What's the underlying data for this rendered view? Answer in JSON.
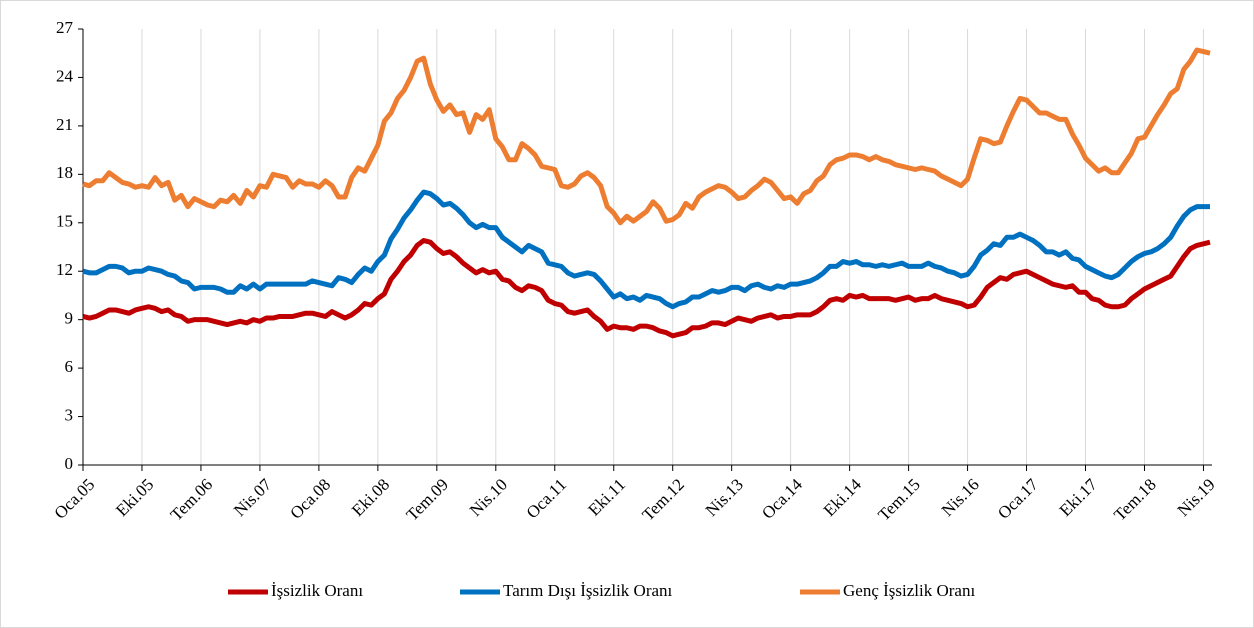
{
  "chart_data": {
    "type": "line",
    "categories": [
      "Oca.05",
      null,
      null,
      null,
      null,
      null,
      null,
      null,
      null,
      "Eki.05",
      null,
      null,
      null,
      null,
      null,
      null,
      null,
      null,
      "Tem.06",
      null,
      null,
      null,
      null,
      null,
      null,
      null,
      null,
      "Nis.07",
      null,
      null,
      null,
      null,
      null,
      null,
      null,
      null,
      "Oca.08",
      null,
      null,
      null,
      null,
      null,
      null,
      null,
      null,
      "Eki.08",
      null,
      null,
      null,
      null,
      null,
      null,
      null,
      null,
      "Tem.09",
      null,
      null,
      null,
      null,
      null,
      null,
      null,
      null,
      "Nis.10",
      null,
      null,
      null,
      null,
      null,
      null,
      null,
      null,
      "Oca.11",
      null,
      null,
      null,
      null,
      null,
      null,
      null,
      null,
      "Eki.11",
      null,
      null,
      null,
      null,
      null,
      null,
      null,
      null,
      "Tem.12",
      null,
      null,
      null,
      null,
      null,
      null,
      null,
      null,
      "Nis.13",
      null,
      null,
      null,
      null,
      null,
      null,
      null,
      null,
      "Oca.14",
      null,
      null,
      null,
      null,
      null,
      null,
      null,
      null,
      "Eki.14",
      null,
      null,
      null,
      null,
      null,
      null,
      null,
      null,
      "Tem.15",
      null,
      null,
      null,
      null,
      null,
      null,
      null,
      null,
      "Nis.16",
      null,
      null,
      null,
      null,
      null,
      null,
      null,
      null,
      "Oca.17",
      null,
      null,
      null,
      null,
      null,
      null,
      null,
      null,
      "Eki.17",
      null,
      null,
      null,
      null,
      null,
      null,
      null,
      null,
      "Tem.18",
      null,
      null,
      null,
      null,
      null,
      null,
      null,
      null,
      "Nis.19",
      null
    ],
    "series": [
      {
        "name": "İşsizlik Oranı",
        "color": "#c00000",
        "values": [
          9.2,
          9.1,
          9.2,
          9.4,
          9.6,
          9.6,
          9.5,
          9.4,
          9.6,
          9.7,
          9.8,
          9.7,
          9.5,
          9.6,
          9.3,
          9.2,
          8.9,
          9.0,
          9.0,
          9.0,
          8.9,
          8.8,
          8.7,
          8.8,
          8.9,
          8.8,
          9.0,
          8.9,
          9.1,
          9.1,
          9.2,
          9.2,
          9.2,
          9.3,
          9.4,
          9.4,
          9.3,
          9.2,
          9.5,
          9.3,
          9.1,
          9.3,
          9.6,
          10.0,
          9.9,
          10.3,
          10.6,
          11.5,
          12.0,
          12.6,
          13.0,
          13.6,
          13.9,
          13.8,
          13.4,
          13.1,
          13.2,
          12.9,
          12.5,
          12.2,
          11.9,
          12.1,
          11.9,
          12.0,
          11.5,
          11.4,
          11.0,
          10.8,
          11.1,
          11.0,
          10.8,
          10.2,
          10.0,
          9.9,
          9.5,
          9.4,
          9.5,
          9.6,
          9.2,
          8.9,
          8.4,
          8.6,
          8.5,
          8.5,
          8.4,
          8.6,
          8.6,
          8.5,
          8.3,
          8.2,
          8.0,
          8.1,
          8.2,
          8.5,
          8.5,
          8.6,
          8.8,
          8.8,
          8.7,
          8.9,
          9.1,
          9.0,
          8.9,
          9.1,
          9.2,
          9.3,
          9.1,
          9.2,
          9.2,
          9.3,
          9.3,
          9.3,
          9.5,
          9.8,
          10.2,
          10.3,
          10.2,
          10.5,
          10.4,
          10.5,
          10.3,
          10.3,
          10.3,
          10.3,
          10.2,
          10.3,
          10.4,
          10.2,
          10.3,
          10.3,
          10.5,
          10.3,
          10.2,
          10.1,
          10.0,
          9.8,
          9.9,
          10.4,
          11.0,
          11.3,
          11.6,
          11.5,
          11.8,
          11.9,
          12.0,
          11.8,
          11.6,
          11.4,
          11.2,
          11.1,
          11.0,
          11.1,
          10.7,
          10.7,
          10.3,
          10.2,
          9.9,
          9.8,
          9.8,
          9.9,
          10.3,
          10.6,
          10.9,
          11.1,
          11.3,
          11.5,
          11.7,
          12.3,
          12.9,
          13.4,
          13.6,
          13.7,
          13.8
        ]
      },
      {
        "name": "Tarım Dışı İşsizlik Oranı",
        "color": "#0070c0",
        "values": [
          12.0,
          11.9,
          11.9,
          12.1,
          12.3,
          12.3,
          12.2,
          11.9,
          12.0,
          12.0,
          12.2,
          12.1,
          12.0,
          11.8,
          11.7,
          11.4,
          11.3,
          10.9,
          11.0,
          11.0,
          11.0,
          10.9,
          10.7,
          10.7,
          11.1,
          10.9,
          11.2,
          10.9,
          11.2,
          11.2,
          11.2,
          11.2,
          11.2,
          11.2,
          11.2,
          11.4,
          11.3,
          11.2,
          11.1,
          11.6,
          11.5,
          11.3,
          11.8,
          12.2,
          12.0,
          12.6,
          13.0,
          14.0,
          14.6,
          15.3,
          15.8,
          16.4,
          16.9,
          16.8,
          16.5,
          16.1,
          16.2,
          15.9,
          15.5,
          15.0,
          14.7,
          14.9,
          14.7,
          14.7,
          14.1,
          13.8,
          13.5,
          13.2,
          13.6,
          13.4,
          13.2,
          12.5,
          12.4,
          12.3,
          11.9,
          11.7,
          11.8,
          11.9,
          11.8,
          11.4,
          10.9,
          10.4,
          10.6,
          10.3,
          10.4,
          10.2,
          10.5,
          10.4,
          10.3,
          10.0,
          9.8,
          10.0,
          10.1,
          10.4,
          10.4,
          10.6,
          10.8,
          10.7,
          10.8,
          11.0,
          11.0,
          10.8,
          11.1,
          11.2,
          11.0,
          10.9,
          11.1,
          11.0,
          11.2,
          11.2,
          11.3,
          11.4,
          11.6,
          11.9,
          12.3,
          12.3,
          12.6,
          12.5,
          12.6,
          12.4,
          12.4,
          12.3,
          12.4,
          12.3,
          12.4,
          12.5,
          12.3,
          12.3,
          12.3,
          12.5,
          12.3,
          12.2,
          12.0,
          11.9,
          11.7,
          11.8,
          12.3,
          13.0,
          13.3,
          13.7,
          13.6,
          14.1,
          14.1,
          14.3,
          14.1,
          13.9,
          13.6,
          13.2,
          13.2,
          13.0,
          13.2,
          12.8,
          12.7,
          12.3,
          12.1,
          11.9,
          11.7,
          11.6,
          11.8,
          12.2,
          12.6,
          12.9,
          13.1,
          13.2,
          13.4,
          13.7,
          14.1,
          14.8,
          15.4,
          15.8,
          16.0,
          16.0,
          16.0
        ]
      },
      {
        "name": "Genç İşsizlik Oranı",
        "color": "#ed7d31",
        "values": [
          17.4,
          17.3,
          17.6,
          17.6,
          18.1,
          17.8,
          17.5,
          17.4,
          17.2,
          17.3,
          17.2,
          17.8,
          17.3,
          17.5,
          16.4,
          16.7,
          16.0,
          16.5,
          16.3,
          16.1,
          16.0,
          16.4,
          16.3,
          16.7,
          16.2,
          17.0,
          16.6,
          17.3,
          17.2,
          18.0,
          17.9,
          17.8,
          17.2,
          17.6,
          17.4,
          17.4,
          17.2,
          17.6,
          17.3,
          16.6,
          16.6,
          17.8,
          18.4,
          18.2,
          19.0,
          19.8,
          21.3,
          21.8,
          22.7,
          23.2,
          24.0,
          25.0,
          25.2,
          23.6,
          22.6,
          21.9,
          22.3,
          21.7,
          21.8,
          20.6,
          21.7,
          21.4,
          22.0,
          20.2,
          19.7,
          18.9,
          18.9,
          19.9,
          19.6,
          19.2,
          18.5,
          18.4,
          18.3,
          17.3,
          17.2,
          17.4,
          17.9,
          18.1,
          17.8,
          17.3,
          16.0,
          15.6,
          15.0,
          15.4,
          15.1,
          15.4,
          15.7,
          16.3,
          15.9,
          15.1,
          15.2,
          15.5,
          16.2,
          15.9,
          16.6,
          16.9,
          17.1,
          17.3,
          17.2,
          16.9,
          16.5,
          16.6,
          17.0,
          17.3,
          17.7,
          17.5,
          17.0,
          16.5,
          16.6,
          16.2,
          16.8,
          17.0,
          17.6,
          17.9,
          18.6,
          18.9,
          19.0,
          19.2,
          19.2,
          19.1,
          18.9,
          19.1,
          18.9,
          18.8,
          18.6,
          18.5,
          18.4,
          18.3,
          18.4,
          18.3,
          18.2,
          17.9,
          17.7,
          17.5,
          17.3,
          17.7,
          19.0,
          20.2,
          20.1,
          19.9,
          20.0,
          21.0,
          21.9,
          22.7,
          22.6,
          22.2,
          21.8,
          21.8,
          21.6,
          21.4,
          21.4,
          20.5,
          19.8,
          19.0,
          18.6,
          18.2,
          18.4,
          18.1,
          18.1,
          18.7,
          19.3,
          20.2,
          20.3,
          21.0,
          21.7,
          22.3,
          23.0,
          23.3,
          24.5,
          25.0,
          25.7,
          25.6,
          25.5
        ]
      }
    ],
    "ylim": [
      0,
      27
    ],
    "yticks": [
      0,
      3,
      6,
      9,
      12,
      15,
      18,
      21,
      24,
      27
    ],
    "grid": true,
    "legend": "bottom"
  }
}
